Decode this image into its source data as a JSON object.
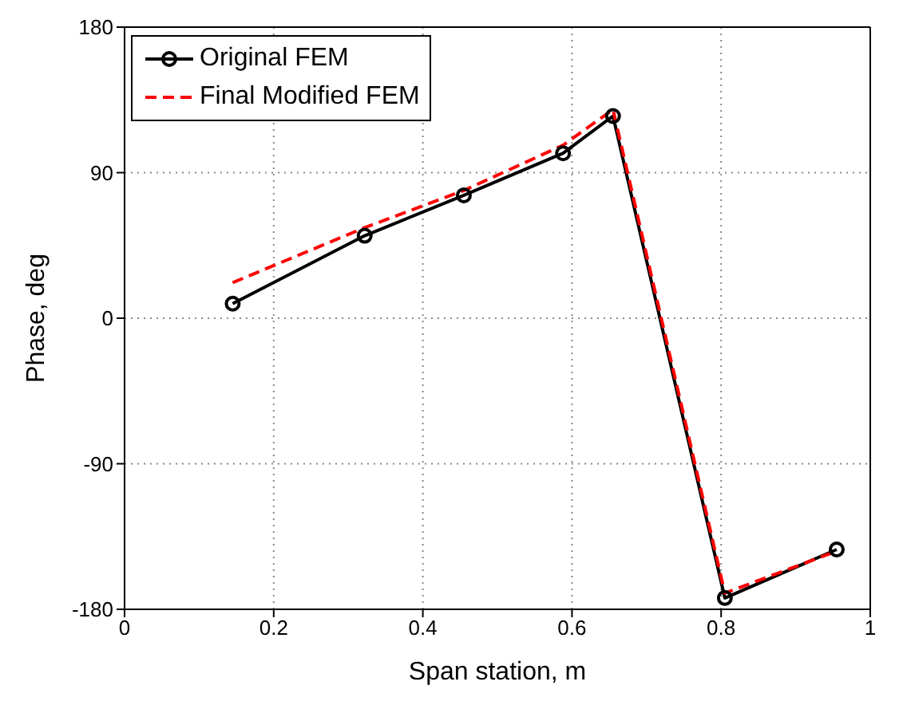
{
  "chart_data": {
    "type": "line",
    "xlabel": "Span station, m",
    "ylabel": "Phase, deg",
    "xlim": [
      0,
      1
    ],
    "xticks": [
      0,
      0.2,
      0.4,
      0.6,
      0.8,
      1
    ],
    "ylim": [
      -180,
      180
    ],
    "yticks": [
      -180,
      -90,
      0,
      90,
      180
    ],
    "grid": true,
    "legend": "top left",
    "series": [
      {
        "name": "Original FEM",
        "color": "#000000",
        "marker": "circle",
        "line_style": "solid",
        "x": [
          0.145,
          0.322,
          0.455,
          0.588,
          0.655,
          0.805,
          0.955
        ],
        "values": [
          9,
          51,
          76,
          102,
          125,
          -173,
          -143
        ]
      },
      {
        "name": "Final Modified FEM",
        "color": "#ff0000",
        "marker": "none",
        "line_style": "dashed",
        "x": [
          0.145,
          0.322,
          0.455,
          0.588,
          0.655,
          0.805,
          0.955
        ],
        "values": [
          22,
          56,
          79,
          107,
          129,
          -170,
          -144
        ]
      }
    ]
  }
}
